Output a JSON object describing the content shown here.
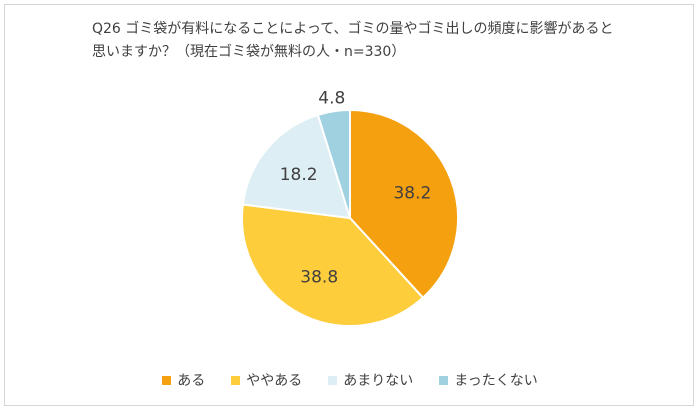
{
  "chart_data": {
    "type": "pie",
    "title": "Q26 ゴミ袋が有料になることによって、ゴミの量やゴミ出しの頻度に影響があると思いますか？（現在ゴミ袋が無料の人・n=330）",
    "categories": [
      "ある",
      "ややある",
      "あまりない",
      "まったくない"
    ],
    "values": [
      38.2,
      38.8,
      18.2,
      4.8
    ],
    "value_labels": [
      "38.2",
      "38.8",
      "18.2",
      "4.8"
    ],
    "colors": [
      "#f5a00f",
      "#fecd3c",
      "#ddeef4",
      "#9fd1e0"
    ],
    "start_angle_deg": 0,
    "direction": "clockwise",
    "legend_position": "bottom"
  }
}
